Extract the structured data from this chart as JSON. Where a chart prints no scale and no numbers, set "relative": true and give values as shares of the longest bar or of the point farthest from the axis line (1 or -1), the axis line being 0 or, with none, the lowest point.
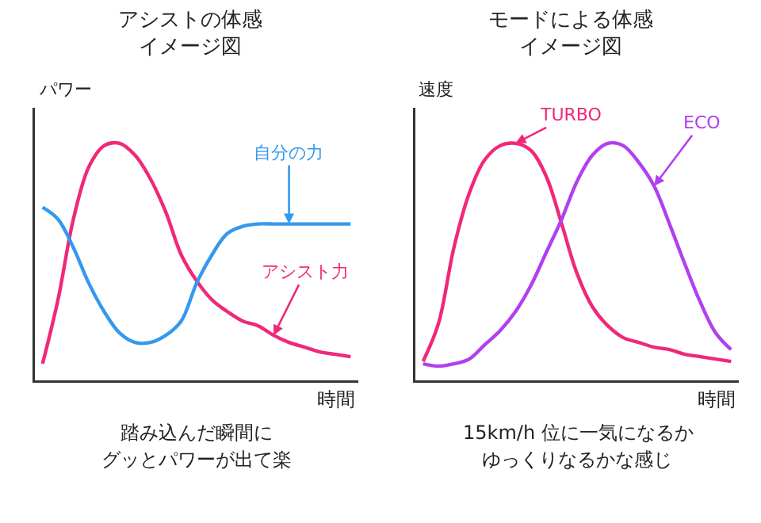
{
  "chart_data": [
    {
      "type": "line",
      "title": "アシストの体感",
      "subtitle": "イメージ図",
      "xlabel": "時間",
      "ylabel": "パワー",
      "relative": true,
      "legend": false,
      "categories": [
        null,
        null,
        null,
        null,
        null,
        null,
        null,
        null,
        null,
        null,
        null,
        null,
        null,
        null,
        null,
        null,
        null,
        null,
        null,
        null,
        null
      ],
      "series": [
        {
          "name": "アシスト力",
          "color": "#f0287a",
          "values": [
            0.07,
            0.34,
            0.68,
            0.9,
            0.99,
            1.0,
            0.95,
            0.85,
            0.71,
            0.53,
            0.42,
            0.34,
            0.29,
            0.25,
            0.23,
            0.19,
            0.16,
            0.14,
            0.12,
            0.11,
            0.1
          ]
        },
        {
          "name": "自分の力",
          "color": "#3399ee",
          "values": [
            0.73,
            0.68,
            0.56,
            0.41,
            0.29,
            0.2,
            0.16,
            0.16,
            0.19,
            0.25,
            0.41,
            0.53,
            0.62,
            0.65,
            0.66,
            0.66,
            0.66,
            0.66,
            0.66,
            0.66,
            0.66
          ]
        }
      ],
      "annotations": [
        "踏み込んだ瞬間に",
        "グッとパワーが出て楽"
      ]
    },
    {
      "type": "line",
      "title": "モードによる体感",
      "subtitle": "イメージ図",
      "xlabel": "時間",
      "ylabel": "速度",
      "relative": true,
      "legend": false,
      "categories": [
        null,
        null,
        null,
        null,
        null,
        null,
        null,
        null,
        null,
        null,
        null,
        null,
        null,
        null,
        null,
        null,
        null,
        null,
        null,
        null,
        null
      ],
      "series": [
        {
          "name": "TURBO",
          "color": "#f0287a",
          "values": [
            0.08,
            0.24,
            0.56,
            0.79,
            0.93,
            0.99,
            1.0,
            0.97,
            0.86,
            0.66,
            0.45,
            0.31,
            0.23,
            0.18,
            0.16,
            0.14,
            0.13,
            0.11,
            0.1,
            0.09,
            0.08
          ]
        },
        {
          "name": "ECO",
          "color": "#b040f0",
          "values": [
            0.07,
            0.06,
            0.07,
            0.09,
            0.15,
            0.21,
            0.29,
            0.4,
            0.54,
            0.68,
            0.84,
            0.95,
            1.0,
            0.99,
            0.92,
            0.82,
            0.66,
            0.49,
            0.33,
            0.2,
            0.13
          ]
        }
      ],
      "annotations": [
        "15km/h 位に一気になるか",
        "ゆっくりなるかな感じ"
      ]
    }
  ]
}
